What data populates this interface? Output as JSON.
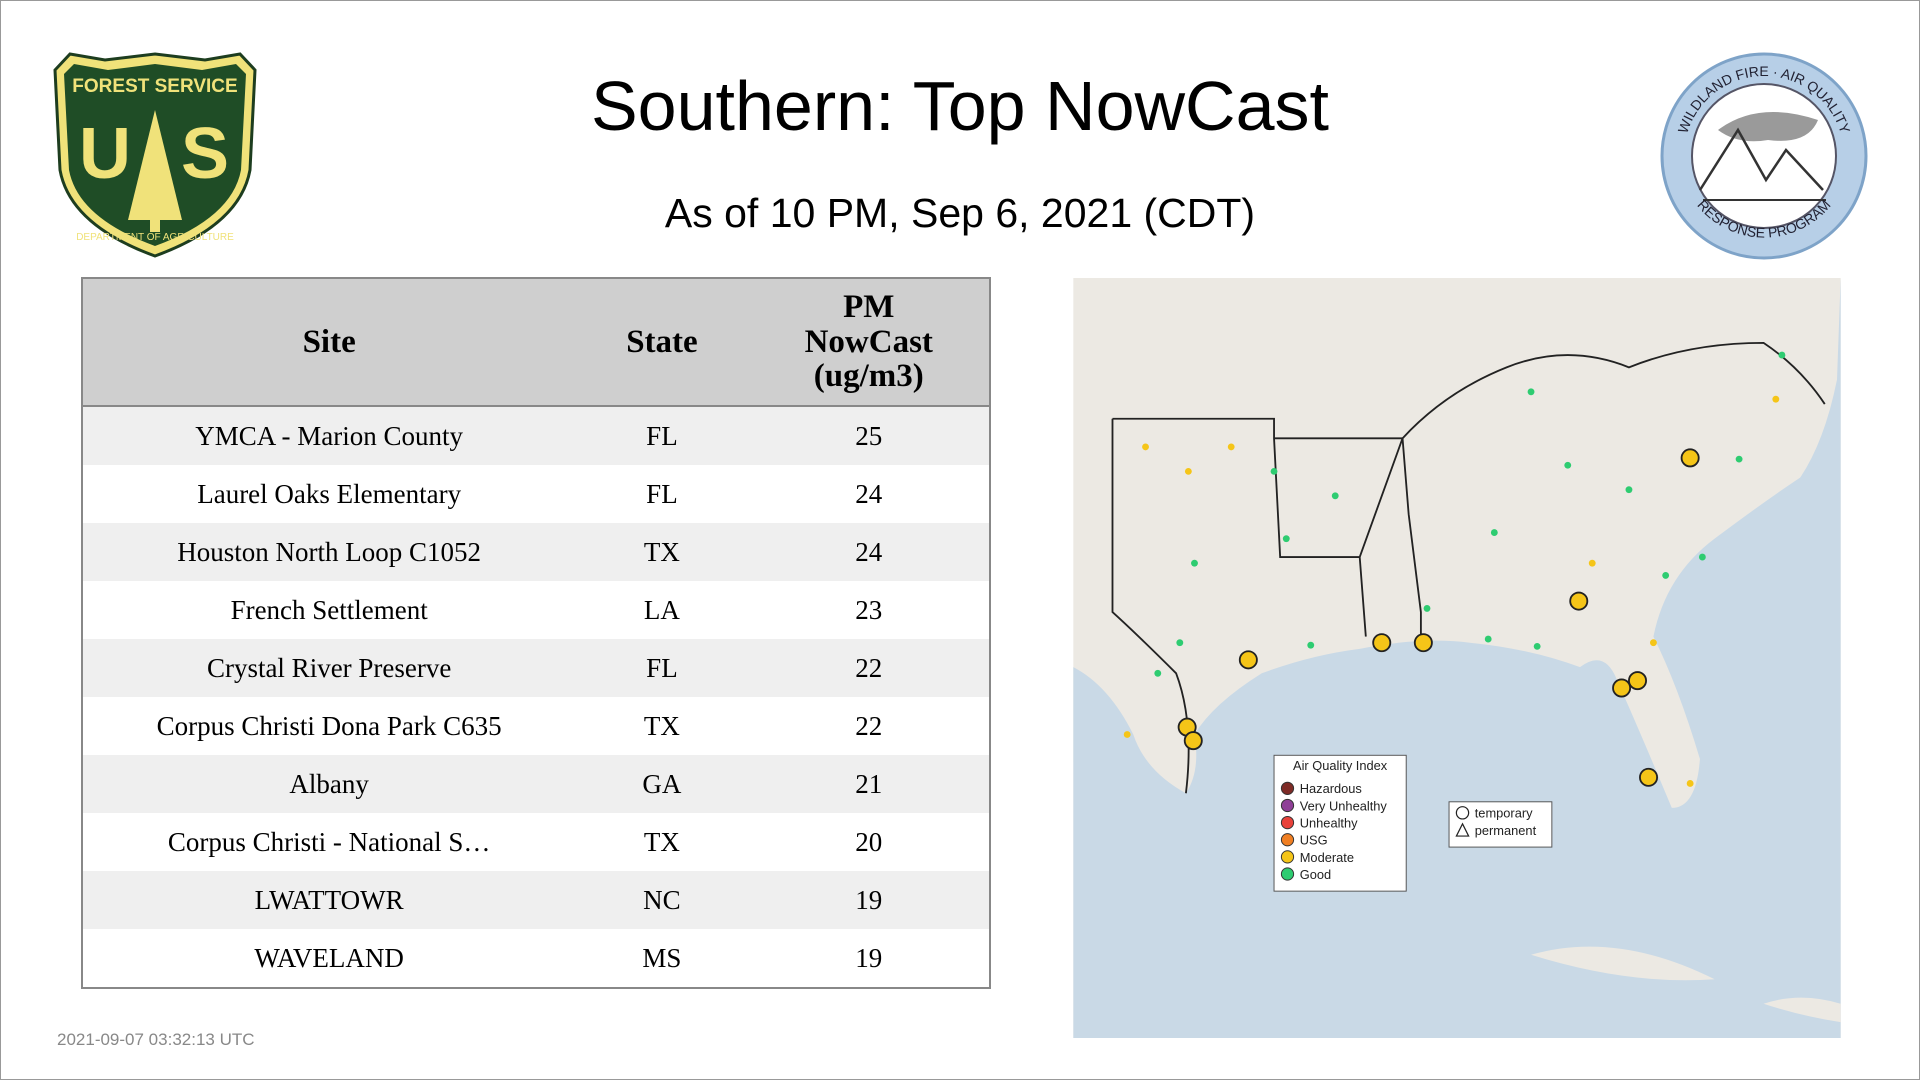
{
  "header": {
    "title": "Southern: Top NowCast",
    "subtitle": "As of 10 PM, Sep  6, 2021 (CDT)"
  },
  "logos": {
    "forest_service": {
      "top": "FOREST SERVICE",
      "letters": [
        "U",
        "S"
      ],
      "bottom": "DEPARTMENT OF AGRICULTURE"
    },
    "program": {
      "top": "WILDLAND FIRE · AIR QUALITY",
      "bottom": "RESPONSE PROGRAM"
    }
  },
  "table": {
    "columns": [
      "Site",
      "State",
      "PM NowCast (ug/m3)"
    ],
    "rows": [
      [
        "YMCA - Marion County",
        "FL",
        25
      ],
      [
        "Laurel Oaks Elementary",
        "FL",
        24
      ],
      [
        "Houston North Loop C1052",
        "TX",
        24
      ],
      [
        "French Settlement",
        "LA",
        23
      ],
      [
        "Crystal River Preserve",
        "FL",
        22
      ],
      [
        "Corpus Christi Dona Park C635",
        "TX",
        22
      ],
      [
        "Albany",
        "GA",
        21
      ],
      [
        "Corpus Christi - National S…",
        "TX",
        20
      ],
      [
        "LWATTOWR",
        "NC",
        19
      ],
      [
        "WAVELAND",
        "MS",
        19
      ]
    ]
  },
  "map": {
    "legend": {
      "title": "Air Quality Index",
      "items": [
        {
          "label": "Hazardous",
          "color": "#7e2b26"
        },
        {
          "label": "Very Unhealthy",
          "color": "#8f3f97"
        },
        {
          "label": "Unhealthy",
          "color": "#e8413a"
        },
        {
          "label": "USG",
          "color": "#f07f23"
        },
        {
          "label": "Moderate",
          "color": "#f5c518"
        },
        {
          "label": "Good",
          "color": "#2ecc71"
        }
      ]
    },
    "shapes": [
      "temporary",
      "permanent"
    ]
  },
  "footer": {
    "timestamp": "2021-09-07 03:32:13 UTC"
  }
}
